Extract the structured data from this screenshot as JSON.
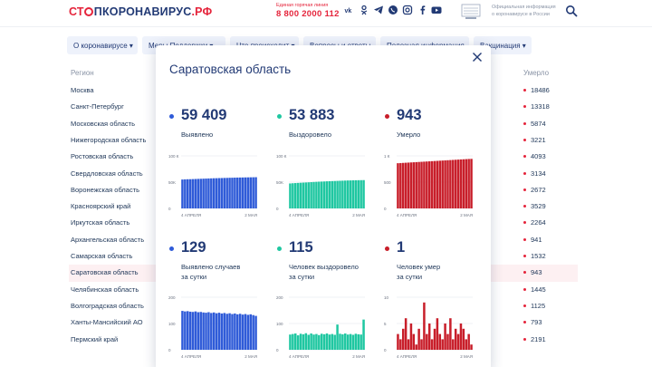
{
  "header": {
    "logo_part1": "СТ",
    "logo_part2": "ПКОРОНАВИРУС",
    "logo_part3": ".РФ",
    "hotline_label": "Единая горячая линия",
    "hotline_phone": "8 800 2000 112",
    "social_icons": [
      "vk-icon",
      "ok-icon",
      "telegram-icon",
      "viber-icon",
      "instagram-icon",
      "facebook-icon",
      "youtube-icon"
    ],
    "official_text_line1": "Официальная информация",
    "official_text_line2": "о коронавирусе в России"
  },
  "nav": [
    {
      "label": "О коронавирусе ▾"
    },
    {
      "label": "Меры Поддержки ▾"
    },
    {
      "label": "Что происходит ▾"
    },
    {
      "label": "Вопросы и ответы"
    },
    {
      "label": "Полезная информация"
    },
    {
      "label": "Вакцинация ▾"
    }
  ],
  "table": {
    "header_region": "Регион",
    "header_deaths": "Умерло",
    "rows": [
      {
        "region": "Москва",
        "deaths": "18486"
      },
      {
        "region": "Санкт-Петербург",
        "deaths": "13318"
      },
      {
        "region": "Московская область",
        "deaths": "5874"
      },
      {
        "region": "Нижегородская область",
        "deaths": "3221"
      },
      {
        "region": "Ростовская область",
        "deaths": "4093"
      },
      {
        "region": "Свердловская область",
        "deaths": "3134"
      },
      {
        "region": "Воронежская область",
        "deaths": "2672"
      },
      {
        "region": "Красноярский край",
        "deaths": "3529"
      },
      {
        "region": "Иркутская область",
        "deaths": "2264"
      },
      {
        "region": "Архангельская область",
        "deaths": "941"
      },
      {
        "region": "Самарская область",
        "deaths": "1532"
      },
      {
        "region": "Саратовская область",
        "deaths": "943",
        "active": true
      },
      {
        "region": "Челябинская область",
        "deaths": "1445"
      },
      {
        "region": "Волгоградская область",
        "deaths": "1125"
      },
      {
        "region": "Ханты-Мансийский АО",
        "deaths": "793"
      },
      {
        "region": "Пермский край",
        "deaths": "2191"
      }
    ]
  },
  "modal": {
    "title": "Саратовская область",
    "metrics": [
      {
        "value": "59 409",
        "label1": "Выявлено",
        "label2": "",
        "color": "#2f5bd8"
      },
      {
        "value": "53 883",
        "label1": "Выздоровело",
        "label2": "",
        "color": "#1fc7a1"
      },
      {
        "value": "943",
        "label1": "Умерло",
        "label2": "",
        "color": "#c81e2a"
      },
      {
        "value": "129",
        "label1": "Выявлено случаев",
        "label2": "за сутки",
        "color": "#2f5bd8"
      },
      {
        "value": "115",
        "label1": "Человек выздоровело",
        "label2": "за сутки",
        "color": "#1fc7a1"
      },
      {
        "value": "1",
        "label1": "Человек умер",
        "label2": "за сутки",
        "color": "#c81e2a"
      }
    ]
  },
  "chart_data": [
    {
      "type": "bar",
      "x_start": "4 АПРЕЛЯ",
      "x_end": "2 МАЯ",
      "y_ticks": [
        "100 К",
        "50K",
        "0"
      ],
      "ylim": [
        0,
        100000
      ],
      "color": "#2f5bd8",
      "values": [
        55000,
        55300,
        55500,
        55600,
        55800,
        56000,
        56200,
        56400,
        56600,
        56800,
        57000,
        57200,
        57400,
        57500,
        57700,
        57800,
        58000,
        58100,
        58300,
        58400,
        58600,
        58700,
        58800,
        58900,
        59000,
        59100,
        59200,
        59300,
        59409
      ]
    },
    {
      "type": "bar",
      "x_start": "4 АПРЕЛЯ",
      "x_end": "2 МАЯ",
      "y_ticks": [
        "100 К",
        "50K",
        "0"
      ],
      "ylim": [
        0,
        100000
      ],
      "color": "#1fc7a1",
      "values": [
        47500,
        47900,
        48200,
        48500,
        48800,
        49100,
        49400,
        49700,
        50000,
        50300,
        50600,
        50900,
        51100,
        51300,
        51600,
        51800,
        52000,
        52200,
        52400,
        52600,
        52800,
        53000,
        53200,
        53300,
        53500,
        53600,
        53700,
        53800,
        53883
      ]
    },
    {
      "type": "bar",
      "x_start": "4 АПРЕЛЯ",
      "x_end": "2 МАЯ",
      "y_ticks": [
        "1 К",
        "500",
        "0"
      ],
      "ylim": [
        0,
        1000
      ],
      "color": "#c81e2a",
      "values": [
        860,
        863,
        866,
        869,
        872,
        875,
        878,
        881,
        884,
        887,
        890,
        893,
        896,
        899,
        902,
        905,
        908,
        911,
        914,
        917,
        920,
        923,
        926,
        929,
        932,
        935,
        938,
        941,
        943
      ]
    },
    {
      "type": "bar",
      "x_start": "4 АПРЕЛЯ",
      "x_end": "2 МАЯ",
      "y_ticks": [
        "200",
        "100",
        "0"
      ],
      "ylim": [
        0,
        200
      ],
      "color": "#2f5bd8",
      "values": [
        148,
        146,
        147,
        145,
        144,
        146,
        143,
        144,
        142,
        141,
        143,
        140,
        142,
        139,
        141,
        138,
        140,
        137,
        139,
        136,
        138,
        135,
        137,
        134,
        136,
        133,
        135,
        132,
        129
      ]
    },
    {
      "type": "bar",
      "x_start": "4 АПРЕЛЯ",
      "x_end": "2 МАЯ",
      "y_ticks": [
        "200",
        "100",
        "0"
      ],
      "ylim": [
        0,
        200
      ],
      "color": "#1fc7a1",
      "values": [
        58,
        60,
        62,
        55,
        61,
        59,
        63,
        57,
        62,
        58,
        60,
        56,
        61,
        59,
        62,
        58,
        60,
        57,
        96,
        61,
        59,
        62,
        58,
        60,
        57,
        61,
        59,
        58,
        115
      ]
    },
    {
      "type": "bar",
      "x_start": "4 АПРЕЛЯ",
      "x_end": "2 МАЯ",
      "y_ticks": [
        "10",
        "5",
        "0"
      ],
      "ylim": [
        0,
        10
      ],
      "color": "#c81e2a",
      "values": [
        3,
        2,
        4,
        6,
        2,
        5,
        3,
        1,
        4,
        2,
        9,
        3,
        5,
        2,
        4,
        6,
        3,
        2,
        5,
        3,
        6,
        2,
        4,
        3,
        5,
        4,
        2,
        3,
        1
      ]
    }
  ]
}
